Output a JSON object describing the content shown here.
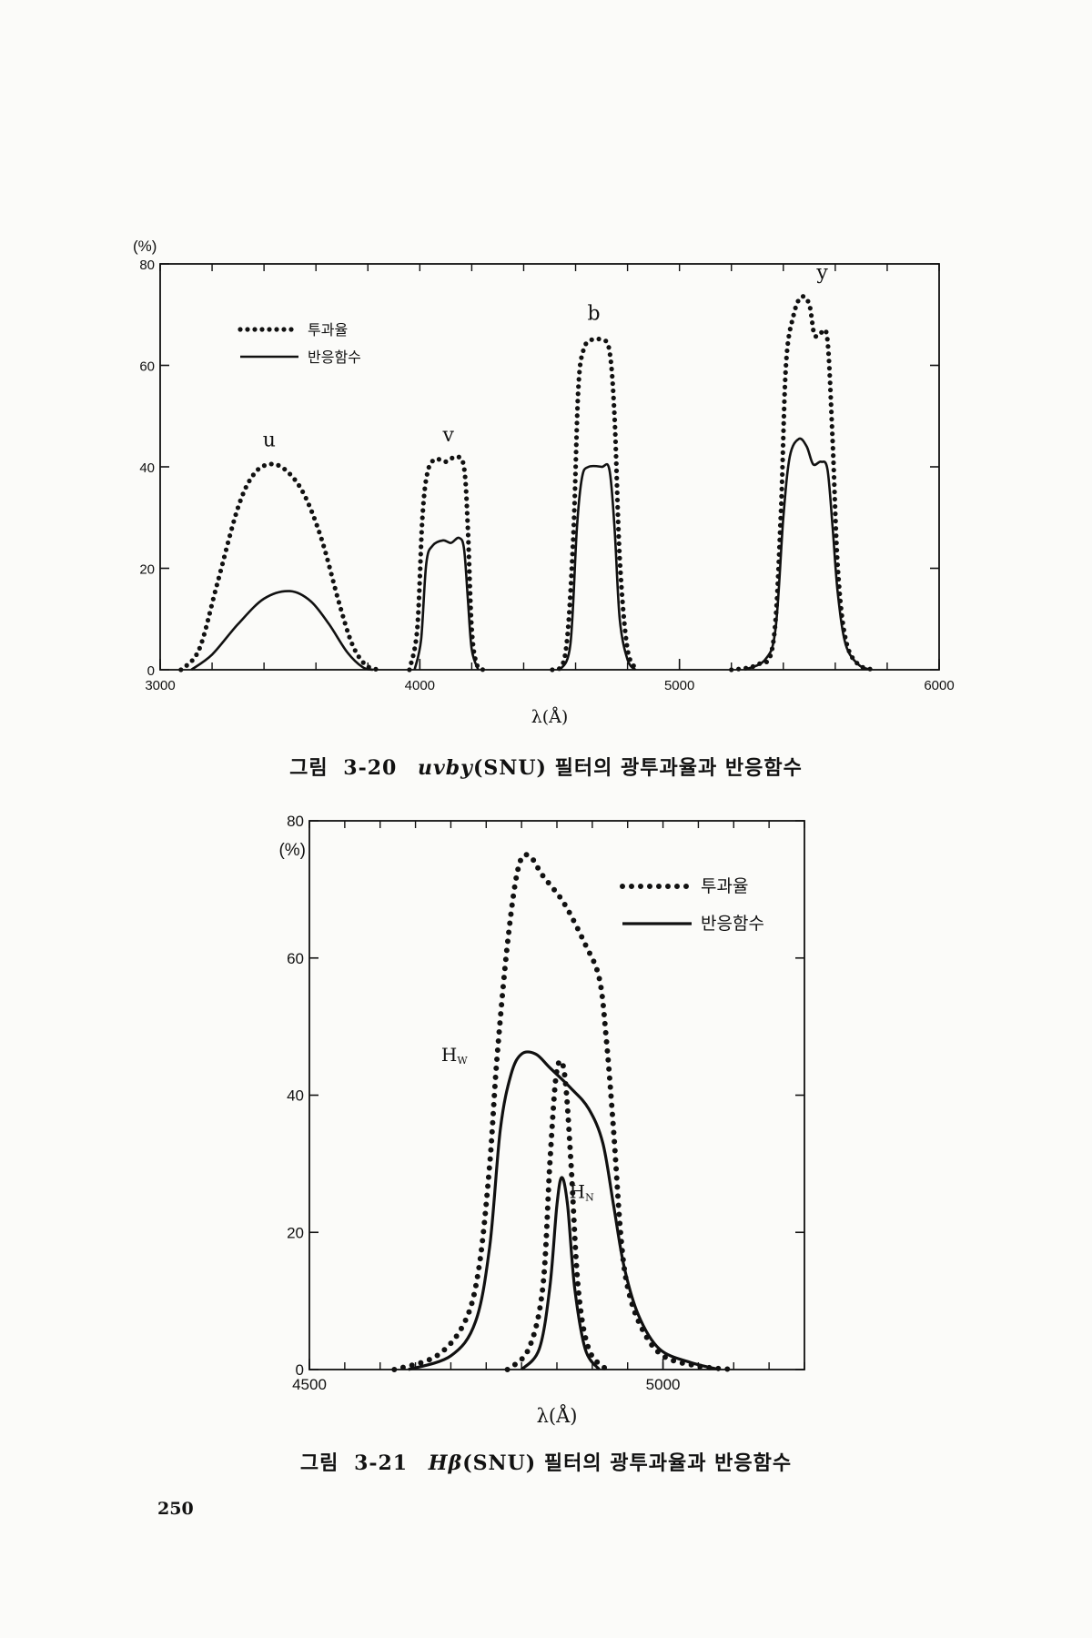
{
  "page_number": "250",
  "chart_data": [
    {
      "type": "line",
      "ylabel": "(%)",
      "xlabel": "λ(Å)",
      "xlim": [
        3000,
        6000
      ],
      "ylim": [
        0,
        80
      ],
      "x_ticks": [
        "3000",
        "4000",
        "5000",
        "6000"
      ],
      "y_ticks": [
        "0",
        "20",
        "40",
        "60",
        "80"
      ],
      "legend": {
        "placement": "top-left",
        "entries": [
          "투과율",
          "반응함수"
        ]
      },
      "band_labels": [
        {
          "text": "u",
          "x": 3420,
          "y": 44
        },
        {
          "text": "v",
          "x": 4110,
          "y": 45
        },
        {
          "text": "b",
          "x": 4670,
          "y": 69
        },
        {
          "text": "y",
          "x": 5550,
          "y": 77
        }
      ],
      "series": [
        {
          "name": "투과율",
          "style": "dotted",
          "curves": [
            [
              [
                3080,
                0
              ],
              [
                3150,
                4
              ],
              [
                3220,
                17
              ],
              [
                3300,
                32
              ],
              [
                3360,
                38.5
              ],
              [
                3420,
                40.5
              ],
              [
                3480,
                39.5
              ],
              [
                3550,
                35
              ],
              [
                3620,
                26
              ],
              [
                3690,
                13
              ],
              [
                3740,
                5
              ],
              [
                3790,
                1
              ],
              [
                3840,
                0
              ]
            ],
            [
              [
                3960,
                0
              ],
              [
                3990,
                8
              ],
              [
                4010,
                30
              ],
              [
                4030,
                39
              ],
              [
                4060,
                41.5
              ],
              [
                4100,
                41
              ],
              [
                4140,
                42
              ],
              [
                4170,
                40
              ],
              [
                4185,
                28
              ],
              [
                4200,
                8
              ],
              [
                4220,
                1
              ],
              [
                4250,
                0
              ]
            ],
            [
              [
                4510,
                0
              ],
              [
                4560,
                3
              ],
              [
                4590,
                25
              ],
              [
                4610,
                55
              ],
              [
                4630,
                63
              ],
              [
                4660,
                65
              ],
              [
                4700,
                65
              ],
              [
                4730,
                63
              ],
              [
                4750,
                50
              ],
              [
                4770,
                22
              ],
              [
                4800,
                4
              ],
              [
                4840,
                0
              ]
            ],
            [
              [
                5200,
                0
              ],
              [
                5300,
                1
              ],
              [
                5360,
                5
              ],
              [
                5390,
                30
              ],
              [
                5410,
                60
              ],
              [
                5440,
                70
              ],
              [
                5470,
                73.5
              ],
              [
                5500,
                72
              ],
              [
                5520,
                66
              ],
              [
                5545,
                66.5
              ],
              [
                5570,
                65
              ],
              [
                5590,
                45
              ],
              [
                5610,
                20
              ],
              [
                5640,
                6
              ],
              [
                5690,
                1
              ],
              [
                5760,
                0
              ]
            ]
          ]
        },
        {
          "name": "반응함수",
          "style": "solid",
          "curves": [
            [
              [
                3120,
                0
              ],
              [
                3200,
                3
              ],
              [
                3300,
                9
              ],
              [
                3400,
                14
              ],
              [
                3500,
                15.5
              ],
              [
                3580,
                13.5
              ],
              [
                3650,
                9
              ],
              [
                3720,
                3.5
              ],
              [
                3780,
                0.5
              ],
              [
                3820,
                0
              ]
            ],
            [
              [
                3980,
                0
              ],
              [
                4005,
                6
              ],
              [
                4025,
                21
              ],
              [
                4050,
                24.5
              ],
              [
                4090,
                25.5
              ],
              [
                4120,
                25
              ],
              [
                4150,
                26
              ],
              [
                4170,
                24
              ],
              [
                4185,
                14
              ],
              [
                4200,
                4
              ],
              [
                4225,
                0
              ]
            ],
            [
              [
                4540,
                0
              ],
              [
                4580,
                5
              ],
              [
                4605,
                28
              ],
              [
                4625,
                38
              ],
              [
                4650,
                40
              ],
              [
                4700,
                40
              ],
              [
                4730,
                39.5
              ],
              [
                4750,
                28
              ],
              [
                4770,
                10
              ],
              [
                4800,
                2
              ],
              [
                4830,
                0
              ]
            ],
            [
              [
                5250,
                0
              ],
              [
                5330,
                2
              ],
              [
                5370,
                8
              ],
              [
                5400,
                30
              ],
              [
                5425,
                42
              ],
              [
                5460,
                45.5
              ],
              [
                5490,
                44
              ],
              [
                5515,
                40.5
              ],
              [
                5545,
                41
              ],
              [
                5570,
                39.5
              ],
              [
                5590,
                28
              ],
              [
                5610,
                15
              ],
              [
                5640,
                5
              ],
              [
                5690,
                1
              ],
              [
                5740,
                0
              ]
            ]
          ]
        }
      ]
    },
    {
      "type": "line",
      "ylabel": "(%)",
      "xlabel": "λ(Å)",
      "xlim": [
        4500,
        5200
      ],
      "ylim": [
        0,
        80
      ],
      "x_ticks": [
        "4500",
        "5000"
      ],
      "y_ticks": [
        "0",
        "20",
        "40",
        "60",
        "80"
      ],
      "legend": {
        "placement": "top-right",
        "entries": [
          "투과율",
          "반응함수"
        ]
      },
      "band_labels": [
        {
          "text": "Hw",
          "x": 4705,
          "y": 45
        },
        {
          "text": "HN",
          "x": 4885,
          "y": 25
        }
      ],
      "series": [
        {
          "name": "투과율",
          "style": "dotted",
          "curves": [
            [
              [
                4620,
                0
              ],
              [
                4680,
                2
              ],
              [
                4720,
                7
              ],
              [
                4740,
                15
              ],
              [
                4755,
                30
              ],
              [
                4765,
                45
              ],
              [
                4780,
                62
              ],
              [
                4795,
                73
              ],
              [
                4810,
                75
              ],
              [
                4830,
                72
              ],
              [
                4860,
                68
              ],
              [
                4890,
                62
              ],
              [
                4910,
                57
              ],
              [
                4920,
                48
              ],
              [
                4930,
                35
              ],
              [
                4940,
                20
              ],
              [
                4950,
                12
              ],
              [
                4970,
                6
              ],
              [
                5000,
                2
              ],
              [
                5050,
                0.5
              ],
              [
                5100,
                0
              ]
            ],
            [
              [
                4780,
                0
              ],
              [
                4810,
                3
              ],
              [
                4830,
                12
              ],
              [
                4840,
                30
              ],
              [
                4848,
                42
              ],
              [
                4855,
                45
              ],
              [
                4862,
                42
              ],
              [
                4870,
                30
              ],
              [
                4880,
                12
              ],
              [
                4895,
                3
              ],
              [
                4920,
                0
              ]
            ]
          ]
        },
        {
          "name": "반응함수",
          "style": "solid",
          "curves": [
            [
              [
                4640,
                0
              ],
              [
                4700,
                2
              ],
              [
                4735,
                7
              ],
              [
                4755,
                18
              ],
              [
                4770,
                35
              ],
              [
                4785,
                43
              ],
              [
                4800,
                46
              ],
              [
                4820,
                46
              ],
              [
                4840,
                44
              ],
              [
                4870,
                41
              ],
              [
                4895,
                38
              ],
              [
                4915,
                33
              ],
              [
                4930,
                24
              ],
              [
                4945,
                15
              ],
              [
                4965,
                8
              ],
              [
                4995,
                3
              ],
              [
                5040,
                1
              ],
              [
                5080,
                0
              ]
            ],
            [
              [
                4800,
                0
              ],
              [
                4825,
                3
              ],
              [
                4840,
                12
              ],
              [
                4850,
                24
              ],
              [
                4857,
                28
              ],
              [
                4865,
                24
              ],
              [
                4875,
                12
              ],
              [
                4890,
                3
              ],
              [
                4910,
                0
              ]
            ]
          ]
        }
      ]
    }
  ],
  "captions": [
    {
      "label": "그림",
      "number": "3-20",
      "name_italic": "uvby",
      "name_suffix": "(SNU)",
      "text": "필터의  광투과율과  반응함수"
    },
    {
      "label": "그림",
      "number": "3-21",
      "name_italic": "Hβ",
      "name_suffix": "(SNU)",
      "text": "필터의  광투과율과  반응함수"
    }
  ]
}
